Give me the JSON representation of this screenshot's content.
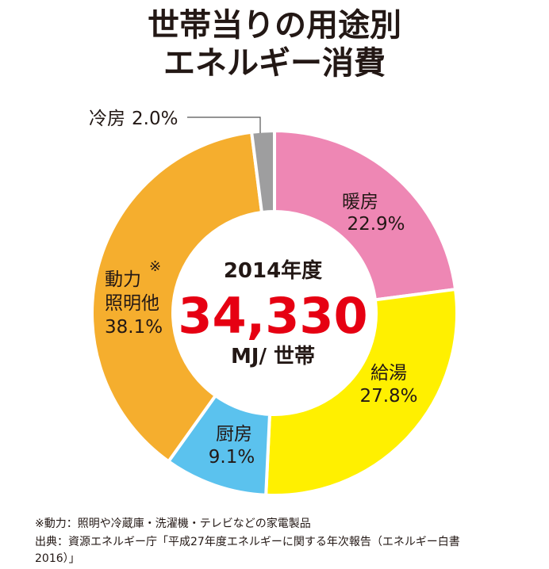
{
  "title_line1": "世帯当りの用途別",
  "title_line2": "エネルギー消費",
  "center": {
    "year": "2014年度",
    "value": "34,330",
    "unit": "MJ/ 世帯"
  },
  "colors": {
    "heating": "#EE87B4",
    "hot_water": "#FFF000",
    "cooking": "#5BC2EE",
    "power_lighting": "#F5AE2E",
    "cooling": "#9E9E9F",
    "value_red": "#E60012",
    "text": "#231815"
  },
  "chart_data": {
    "type": "pie",
    "title": "世帯当りの用途別 エネルギー消費",
    "categories": [
      "暖房",
      "給湯",
      "厨房",
      "動力照明他",
      "冷房"
    ],
    "values": [
      22.9,
      27.8,
      9.1,
      38.1,
      2.0
    ],
    "labels": [
      {
        "name": "暖房",
        "percent": "22.9%"
      },
      {
        "name": "給湯",
        "percent": "27.8%"
      },
      {
        "name": "厨房",
        "percent": "9.1%"
      },
      {
        "name_line1": "動力",
        "name_line2": "照明他",
        "percent": "38.1%",
        "mark": "※"
      },
      {
        "name": "冷房",
        "percent": "2.0%"
      }
    ]
  },
  "notes": {
    "line1": "※動力：照明や冷蔵庫・洗濯機・テレビなどの家電製品",
    "line2": "出典：資源エネルギー庁「平成27年度エネルギーに関する年次報告（エネルギー白書",
    "line3": "2016）」"
  }
}
